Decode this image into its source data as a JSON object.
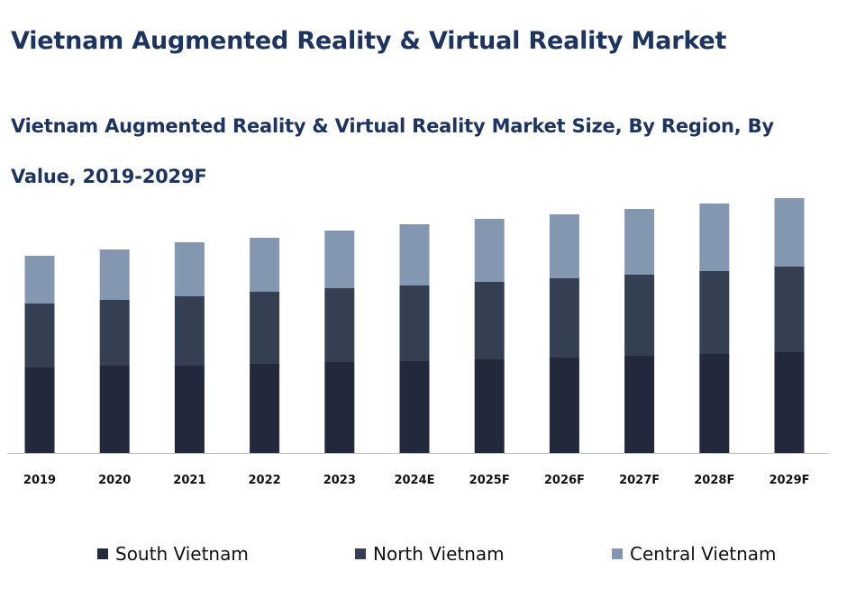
{
  "header": {
    "title": "Vietnam Augmented Reality & Virtual Reality Market"
  },
  "chart_data": {
    "type": "bar",
    "stacked": true,
    "title": "Vietnam Augmented Reality & Virtual Reality Market Size, By Region, By Value, 2019-2029F",
    "xlabel": "",
    "ylabel": "",
    "categories": [
      "2019",
      "2020",
      "2021",
      "2022",
      "2023",
      "2024E",
      "2025F",
      "2026F",
      "2027F",
      "2028F",
      "2029F"
    ],
    "series": [
      {
        "name": "South Vietnam",
        "color": "#22293a",
        "values": [
          95,
          97,
          97,
          99,
          101,
          102,
          104,
          106,
          108,
          110,
          112
        ]
      },
      {
        "name": "North Vietnam",
        "color": "#343f51",
        "values": [
          71,
          73,
          77,
          80,
          82,
          84,
          86,
          88,
          90,
          92,
          95
        ]
      },
      {
        "name": "Central Vietnam",
        "color": "#8497b0",
        "values": [
          53,
          56,
          60,
          60,
          64,
          68,
          70,
          71,
          73,
          75,
          76
        ]
      }
    ],
    "ylim": [
      0,
      285
    ],
    "grid": false,
    "legend": "bottom"
  }
}
